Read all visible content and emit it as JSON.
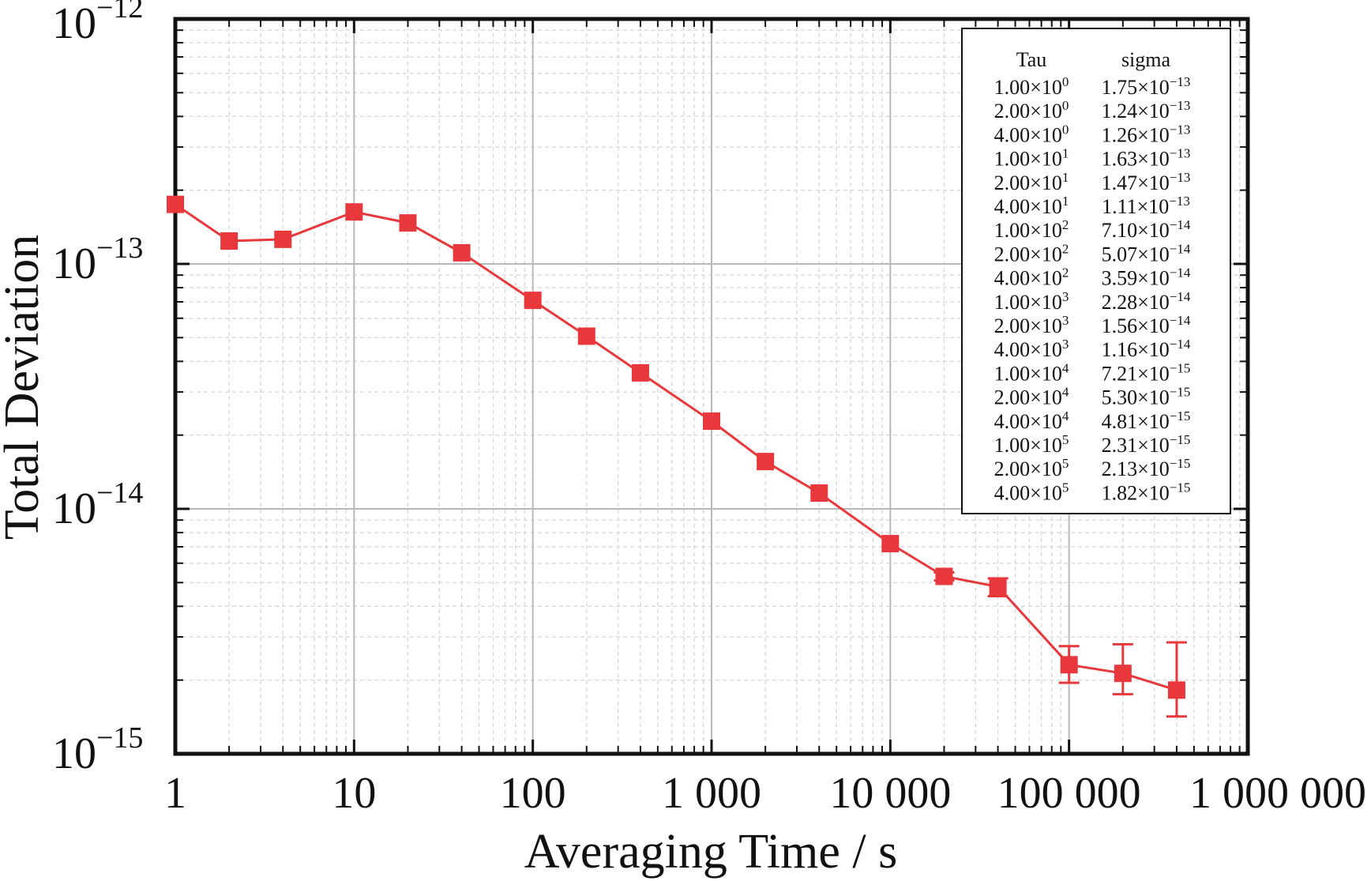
{
  "chart_data": {
    "type": "scatter",
    "xlabel": "Averaging Time / s",
    "ylabel": "Total Deviation",
    "x_scale": "log",
    "y_scale": "log",
    "xlim": [
      1,
      1000000
    ],
    "ylim": [
      1e-15,
      1e-12
    ],
    "grid": true,
    "x_ticks": [
      {
        "value": 1,
        "label": "1"
      },
      {
        "value": 10,
        "label": "10"
      },
      {
        "value": 100,
        "label": "100"
      },
      {
        "value": 1000,
        "label": "1 000"
      },
      {
        "value": 10000,
        "label": "10 000"
      },
      {
        "value": 100000,
        "label": "100 000"
      },
      {
        "value": 1000000,
        "label": "1 000 000"
      }
    ],
    "y_ticks": [
      {
        "value": 1e-15,
        "mantissa": "10",
        "exponent": "−15"
      },
      {
        "value": 1e-14,
        "mantissa": "10",
        "exponent": "−14"
      },
      {
        "value": 1e-13,
        "mantissa": "10",
        "exponent": "−13"
      },
      {
        "value": 1e-12,
        "mantissa": "10",
        "exponent": "−12"
      }
    ],
    "series": [
      {
        "color": "#e8383b",
        "marker": "square",
        "points": [
          {
            "x": 1,
            "y": 1.75e-13
          },
          {
            "x": 2,
            "y": 1.24e-13
          },
          {
            "x": 4,
            "y": 1.26e-13
          },
          {
            "x": 10,
            "y": 1.63e-13
          },
          {
            "x": 20,
            "y": 1.47e-13
          },
          {
            "x": 40,
            "y": 1.11e-13
          },
          {
            "x": 100,
            "y": 7.1e-14
          },
          {
            "x": 200,
            "y": 5.07e-14
          },
          {
            "x": 400,
            "y": 3.59e-14
          },
          {
            "x": 1000,
            "y": 2.28e-14
          },
          {
            "x": 2000,
            "y": 1.56e-14
          },
          {
            "x": 4000,
            "y": 1.16e-14
          },
          {
            "x": 10000,
            "y": 7.21e-15
          },
          {
            "x": 20000,
            "y": 5.3e-15,
            "err_low": 5.1e-15,
            "err_high": 5.5e-15
          },
          {
            "x": 40000,
            "y": 4.81e-15,
            "err_low": 4.4e-15,
            "err_high": 5.2e-15
          },
          {
            "x": 100000,
            "y": 2.31e-15,
            "err_low": 1.95e-15,
            "err_high": 2.75e-15
          },
          {
            "x": 200000,
            "y": 2.13e-15,
            "err_low": 1.75e-15,
            "err_high": 2.8e-15
          },
          {
            "x": 400000,
            "y": 1.82e-15,
            "err_low": 1.42e-15,
            "err_high": 2.85e-15
          }
        ]
      }
    ],
    "legend_table": {
      "placement": "top-right",
      "headers": [
        "Tau",
        "sigma"
      ],
      "rows": [
        {
          "tau": "1.00",
          "tau_exp": "0",
          "sigma": "1.75",
          "sigma_exp": "−13"
        },
        {
          "tau": "2.00",
          "tau_exp": "0",
          "sigma": "1.24",
          "sigma_exp": "−13"
        },
        {
          "tau": "4.00",
          "tau_exp": "0",
          "sigma": "1.26",
          "sigma_exp": "−13"
        },
        {
          "tau": "1.00",
          "tau_exp": "1",
          "sigma": "1.63",
          "sigma_exp": "−13"
        },
        {
          "tau": "2.00",
          "tau_exp": "1",
          "sigma": "1.47",
          "sigma_exp": "−13"
        },
        {
          "tau": "4.00",
          "tau_exp": "1",
          "sigma": "1.11",
          "sigma_exp": "−13"
        },
        {
          "tau": "1.00",
          "tau_exp": "2",
          "sigma": "7.10",
          "sigma_exp": "−14"
        },
        {
          "tau": "2.00",
          "tau_exp": "2",
          "sigma": "5.07",
          "sigma_exp": "−14"
        },
        {
          "tau": "4.00",
          "tau_exp": "2",
          "sigma": "3.59",
          "sigma_exp": "−14"
        },
        {
          "tau": "1.00",
          "tau_exp": "3",
          "sigma": "2.28",
          "sigma_exp": "−14"
        },
        {
          "tau": "2.00",
          "tau_exp": "3",
          "sigma": "1.56",
          "sigma_exp": "−14"
        },
        {
          "tau": "4.00",
          "tau_exp": "3",
          "sigma": "1.16",
          "sigma_exp": "−14"
        },
        {
          "tau": "1.00",
          "tau_exp": "4",
          "sigma": "7.21",
          "sigma_exp": "−15"
        },
        {
          "tau": "2.00",
          "tau_exp": "4",
          "sigma": "5.30",
          "sigma_exp": "−15"
        },
        {
          "tau": "4.00",
          "tau_exp": "4",
          "sigma": "4.81",
          "sigma_exp": "−15"
        },
        {
          "tau": "1.00",
          "tau_exp": "5",
          "sigma": "2.31",
          "sigma_exp": "−15"
        },
        {
          "tau": "2.00",
          "tau_exp": "5",
          "sigma": "2.13",
          "sigma_exp": "−15"
        },
        {
          "tau": "4.00",
          "tau_exp": "5",
          "sigma": "1.82",
          "sigma_exp": "−15"
        }
      ]
    }
  }
}
